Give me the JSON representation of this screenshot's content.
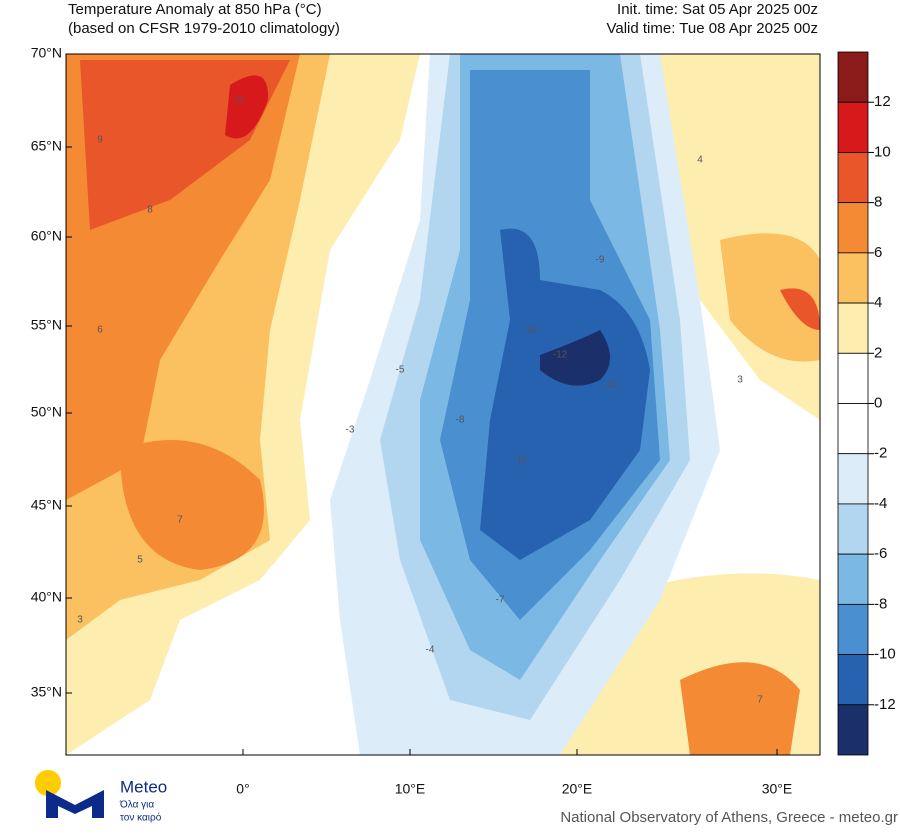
{
  "header": {
    "title": "Temperature Anomaly at 850 hPa (°C)",
    "subtitle": "(based on CFSR 1979-2010 climatology)",
    "init_time": "Init. time: Sat 05 Apr 2025 00z",
    "valid_time": "Valid time: Tue 08 Apr 2025 00z"
  },
  "map": {
    "lat_labels": [
      "70°N",
      "65°N",
      "60°N",
      "55°N",
      "50°N",
      "45°N",
      "40°N",
      "35°N"
    ],
    "lon_labels": [
      "0°",
      "10°E",
      "20°E",
      "30°E"
    ],
    "value_labels": [
      11,
      9,
      8,
      6,
      7,
      -10,
      -12,
      -10,
      -11,
      -8,
      -5,
      -3,
      4,
      3,
      7,
      -7,
      -4,
      3,
      -9,
      5
    ]
  },
  "colorbar": {
    "ticks": [
      12,
      10,
      8,
      6,
      4,
      2,
      0,
      -2,
      -4,
      -6,
      -8,
      -10,
      -12
    ],
    "colors": [
      "#8b1a1a",
      "#d7191c",
      "#e8562a",
      "#f58a35",
      "#fbc060",
      "#fdeeb0",
      "#ffffff",
      "#ffffff",
      "#dcecf8",
      "#b3d6f0",
      "#7bb8e3",
      "#4a8fd0",
      "#2762b0",
      "#1b2f6a"
    ]
  },
  "logo": {
    "name": "Meteo",
    "line1": "Όλα για",
    "line2": "τον καιρό"
  },
  "footer": "National Observatory of Athens, Greece - meteo.gr"
}
